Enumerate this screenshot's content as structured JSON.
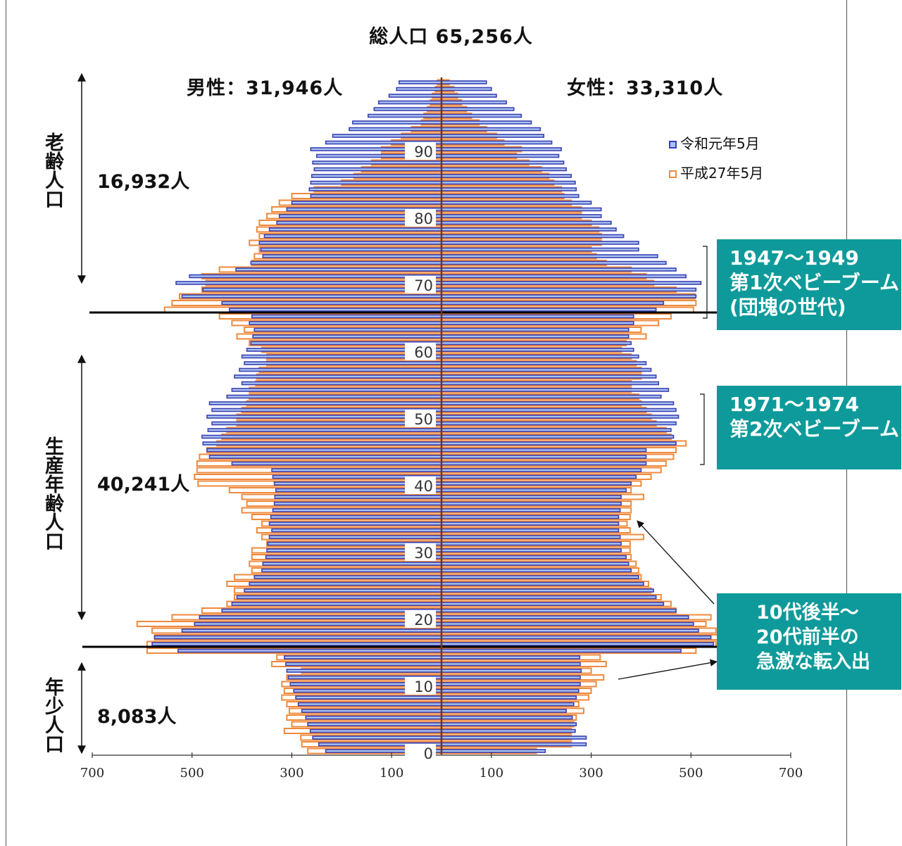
{
  "title": "総人口 65,256人",
  "male_total": "男性：31,946人",
  "female_total": "女性：33,310人",
  "groups": {
    "elderly": {
      "label": "老齢人口",
      "count": "16,932人"
    },
    "working": {
      "label": "生産年齢人口",
      "count": "40,241人"
    },
    "young": {
      "label": "年少人口",
      "count": "8,083人"
    }
  },
  "legend": {
    "reiwa": "令和元年5月",
    "heisei": "平成27年5月"
  },
  "callouts": {
    "boom1": [
      "1947～1949",
      "第1次ベビーブーム",
      "(団塊の世代)"
    ],
    "boom2": [
      "1971～1974",
      "第2次ベビーブーム"
    ],
    "migration": [
      "10代後半～",
      "20代前半の",
      "急激な転入出"
    ]
  },
  "colors": {
    "reiwa_fill": "#a9c6ef",
    "reiwa_stroke": "#3b3fb5",
    "heisei_stroke": "#ef8a3d",
    "callout_bg": "#0e9a9a"
  },
  "chart_data": {
    "type": "bar",
    "orientation": "horizontal-population-pyramid",
    "x_ticks": [
      "700",
      "500",
      "300",
      "100",
      "100",
      "300",
      "500",
      "700"
    ],
    "xlim": [
      -700,
      700
    ],
    "age_ticks": [
      "0",
      "10",
      "20",
      "30",
      "40",
      "50",
      "60",
      "70",
      "80",
      "90"
    ],
    "ylim": [
      0,
      100
    ],
    "ages": [
      0,
      1,
      2,
      3,
      4,
      5,
      6,
      7,
      8,
      9,
      10,
      11,
      12,
      13,
      14,
      15,
      16,
      17,
      18,
      19,
      20,
      21,
      22,
      23,
      24,
      25,
      26,
      27,
      28,
      29,
      30,
      31,
      32,
      33,
      34,
      35,
      36,
      37,
      38,
      39,
      40,
      41,
      42,
      43,
      44,
      45,
      46,
      47,
      48,
      49,
      50,
      51,
      52,
      53,
      54,
      55,
      56,
      57,
      58,
      59,
      60,
      61,
      62,
      63,
      64,
      65,
      66,
      67,
      68,
      69,
      70,
      71,
      72,
      73,
      74,
      75,
      76,
      77,
      78,
      79,
      80,
      81,
      82,
      83,
      84,
      85,
      86,
      87,
      88,
      89,
      90,
      91,
      92,
      93,
      94,
      95,
      96,
      97,
      98,
      99,
      100
    ],
    "series": [
      {
        "name": "令和元年5月",
        "male": [
          232,
          246,
          258,
          263,
          268,
          272,
          280,
          287,
          292,
          296,
          303,
          307,
          310,
          312,
          315,
          528,
          580,
          575,
          520,
          495,
          485,
          440,
          420,
          410,
          395,
          385,
          375,
          360,
          358,
          352,
          350,
          348,
          345,
          340,
          345,
          342,
          338,
          335,
          334,
          332,
          335,
          338,
          340,
          420,
          465,
          470,
          478,
          480,
          468,
          460,
          470,
          460,
          465,
          430,
          420,
          400,
          415,
          405,
          395,
          400,
          390,
          382,
          378,
          375,
          385,
          380,
          425,
          440,
          520,
          478,
          532,
          505,
          412,
          382,
          358,
          362,
          365,
          355,
          345,
          330,
          325,
          310,
          300,
          262,
          265,
          262,
          260,
          255,
          258,
          250,
          262,
          232,
          218,
          185,
          178,
          147,
          135,
          126,
          105,
          90,
          85
        ],
        "female": [
          208,
          290,
          290,
          268,
          270,
          262,
          250,
          265,
          270,
          275,
          278,
          278,
          280,
          278,
          277,
          480,
          545,
          540,
          515,
          505,
          495,
          470,
          445,
          430,
          425,
          405,
          395,
          380,
          375,
          370,
          360,
          360,
          358,
          355,
          355,
          355,
          358,
          360,
          360,
          370,
          380,
          390,
          400,
          410,
          410,
          410,
          470,
          465,
          460,
          470,
          475,
          470,
          465,
          440,
          455,
          435,
          430,
          420,
          410,
          395,
          385,
          380,
          375,
          375,
          385,
          385,
          430,
          445,
          510,
          510,
          520,
          490,
          470,
          450,
          433,
          395,
          395,
          365,
          350,
          340,
          320,
          320,
          300,
          275,
          270,
          268,
          260,
          250,
          245,
          235,
          240,
          221,
          205,
          198,
          180,
          160,
          145,
          130,
          110,
          100,
          90
        ]
      },
      {
        "name": "平成27年5月",
        "male": [
          268,
          280,
          282,
          315,
          300,
          310,
          305,
          310,
          320,
          315,
          320,
          310,
          280,
          340,
          330,
          590,
          590,
          575,
          580,
          610,
          540,
          480,
          430,
          415,
          415,
          430,
          415,
          380,
          385,
          380,
          380,
          350,
          360,
          370,
          360,
          380,
          400,
          390,
          400,
          425,
          488,
          495,
          490,
          490,
          485,
          470,
          450,
          440,
          430,
          410,
          410,
          400,
          390,
          385,
          385,
          372,
          370,
          365,
          350,
          350,
          360,
          385,
          410,
          395,
          420,
          445,
          555,
          540,
          525,
          480,
          472,
          480,
          445,
          380,
          375,
          365,
          385,
          365,
          370,
          365,
          350,
          340,
          325,
          300,
          255,
          200,
          175,
          160,
          140,
          120,
          120,
          100,
          80,
          60,
          40,
          35,
          28,
          22,
          18,
          12,
          8
        ],
        "female": [
          190,
          260,
          260,
          260,
          265,
          270,
          285,
          275,
          295,
          300,
          310,
          325,
          300,
          330,
          318,
          510,
          550,
          555,
          550,
          530,
          540,
          470,
          460,
          440,
          420,
          415,
          400,
          395,
          390,
          380,
          378,
          378,
          405,
          378,
          372,
          378,
          380,
          380,
          405,
          380,
          400,
          420,
          440,
          450,
          465,
          470,
          490,
          460,
          450,
          430,
          420,
          410,
          400,
          395,
          380,
          380,
          400,
          400,
          390,
          380,
          360,
          370,
          410,
          400,
          435,
          460,
          505,
          510,
          508,
          470,
          425,
          410,
          380,
          330,
          310,
          300,
          320,
          320,
          315,
          300,
          280,
          280,
          260,
          245,
          240,
          225,
          215,
          200,
          175,
          150,
          160,
          125,
          110,
          90,
          75,
          60,
          50,
          40,
          32,
          25,
          15
        ]
      }
    ]
  }
}
